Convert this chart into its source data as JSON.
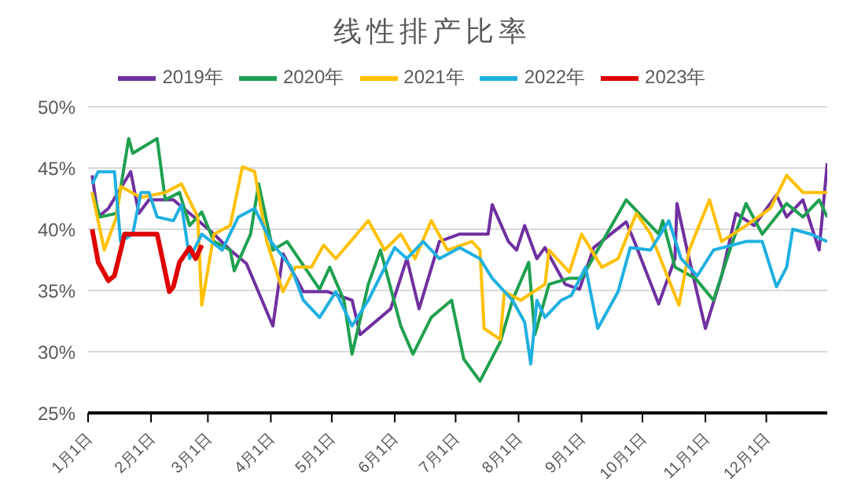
{
  "chart_data": {
    "type": "line",
    "title": "线性排产比率",
    "legend": "top",
    "grid": "y",
    "marker": "none",
    "line_style": "solid",
    "ylim": [
      25,
      50
    ],
    "yticks": [
      {
        "value": 25,
        "label": "25%"
      },
      {
        "value": 30,
        "label": "30%"
      },
      {
        "value": 35,
        "label": "35%"
      },
      {
        "value": 40,
        "label": "40%"
      },
      {
        "value": 45,
        "label": "45%"
      },
      {
        "value": 50,
        "label": "50%"
      }
    ],
    "xlim": [
      "--01-01",
      "--12-31"
    ],
    "xticks": [
      {
        "value": "--01-01",
        "label": "1月1日"
      },
      {
        "value": "--02-01",
        "label": "2月1日"
      },
      {
        "value": "--03-01",
        "label": "3月1日"
      },
      {
        "value": "--04-01",
        "label": "4月1日"
      },
      {
        "value": "--05-01",
        "label": "5月1日"
      },
      {
        "value": "--06-01",
        "label": "6月1日"
      },
      {
        "value": "--07-01",
        "label": "7月1日"
      },
      {
        "value": "--08-01",
        "label": "8月1日"
      },
      {
        "value": "--09-01",
        "label": "9月1日"
      },
      {
        "value": "--10-01",
        "label": "10月1日"
      },
      {
        "value": "--11-01",
        "label": "11月1日"
      },
      {
        "value": "--12-01",
        "label": "12月1日"
      }
    ],
    "series": [
      {
        "name": "2019年",
        "color": "#7030a0",
        "x": [
          "--01-03",
          "--01-06",
          "--01-11",
          "--01-22",
          "--01-26",
          "--01-31",
          "--02-12",
          "--02-20",
          "--03-04",
          "--03-12",
          "--03-20",
          "--04-02",
          "--04-07",
          "--04-17",
          "--04-29",
          "--05-11",
          "--05-15",
          "--05-30",
          "--06-07",
          "--06-13",
          "--06-23",
          "--07-03",
          "--07-17",
          "--07-19",
          "--07-27",
          "--07-31",
          "--08-04",
          "--08-10",
          "--08-14",
          "--08-24",
          "--08-31",
          "--09-07",
          "--09-23",
          "--09-27",
          "--10-09",
          "--10-17",
          "--10-18",
          "--10-23",
          "--11-01",
          "--11-09",
          "--11-16",
          "--11-25",
          "--12-06",
          "--12-11",
          "--12-19",
          "--12-27",
          "--12-31"
        ],
        "values": [
          44.4,
          41,
          41.7,
          44.7,
          41.3,
          42.4,
          42.4,
          41.3,
          39.6,
          38.3,
          37.2,
          32.1,
          38,
          34.9,
          34.9,
          34.2,
          31.4,
          33.5,
          37.6,
          33.5,
          39,
          39.6,
          39.6,
          42,
          39,
          38.3,
          40.3,
          37.6,
          38.5,
          35.5,
          35.1,
          38.5,
          40.6,
          39,
          33.9,
          37.6,
          42.1,
          38.3,
          31.9,
          36.2,
          41.3,
          40.3,
          42.8,
          41,
          42.4,
          38.3,
          45.4
        ]
      },
      {
        "name": "2020年",
        "color": "#1fa050",
        "x": [
          "--01-03",
          "--01-07",
          "--01-15",
          "--01-21",
          "--01-23",
          "--02-04",
          "--02-08",
          "--02-15",
          "--02-20",
          "--02-26",
          "--03-04",
          "--03-12",
          "--03-14",
          "--03-22",
          "--03-26",
          "--04-02",
          "--04-09",
          "--04-25",
          "--04-30",
          "--05-07",
          "--05-11",
          "--05-19",
          "--05-25",
          "--06-04",
          "--06-10",
          "--06-19",
          "--06-29",
          "--07-05",
          "--07-13",
          "--07-23",
          "--07-29",
          "--08-06",
          "--08-09",
          "--08-16",
          "--08-26",
          "--09-01",
          "--09-23",
          "--10-01",
          "--10-09",
          "--10-11",
          "--10-17",
          "--10-27",
          "--11-05",
          "--11-13",
          "--11-21",
          "--11-29",
          "--12-11",
          "--12-19",
          "--12-27",
          "--12-31"
        ],
        "values": [
          43,
          41,
          41.3,
          47.4,
          46.2,
          47.4,
          42.4,
          43,
          40.3,
          41.4,
          39,
          38.3,
          36.6,
          39.6,
          43.7,
          38.3,
          39,
          35.1,
          36.9,
          34.2,
          29.8,
          35.5,
          38.3,
          32.1,
          29.8,
          32.8,
          34.2,
          29.4,
          27.6,
          30.8,
          34.2,
          37.3,
          31.4,
          35.5,
          36,
          36,
          42.4,
          41,
          39.6,
          40.7,
          36.9,
          36,
          34.2,
          38.3,
          42.1,
          39.6,
          42.1,
          41,
          42.4,
          41
        ]
      },
      {
        "name": "2021年",
        "color": "#ffc000",
        "x": [
          "--01-03",
          "--01-09",
          "--01-15",
          "--01-17",
          "--01-27",
          "--02-08",
          "--02-16",
          "--02-24",
          "--02-26",
          "--03-04",
          "--03-12",
          "--03-18",
          "--03-24",
          "--03-30",
          "--04-07",
          "--04-13",
          "--04-21",
          "--04-27",
          "--05-03",
          "--05-19",
          "--05-27",
          "--06-04",
          "--06-11",
          "--06-19",
          "--06-27",
          "--07-09",
          "--07-13",
          "--07-15",
          "--07-23",
          "--07-25",
          "--08-02",
          "--08-14",
          "--08-16",
          "--08-26",
          "--09-01",
          "--09-11",
          "--09-19",
          "--09-28",
          "--10-05",
          "--10-19",
          "--10-24",
          "--11-03",
          "--11-09",
          "--11-21",
          "--12-03",
          "--12-11",
          "--12-19",
          "--12-31"
        ],
        "values": [
          43,
          38.3,
          41,
          43.5,
          42.6,
          43,
          43.7,
          41,
          33.8,
          39.6,
          40.3,
          45.1,
          44.7,
          39,
          34.9,
          36.9,
          36.9,
          38.7,
          37.6,
          40.7,
          38.3,
          39.6,
          37.6,
          40.7,
          38.3,
          39,
          38.3,
          31.9,
          31,
          34.9,
          34.2,
          35.5,
          38.3,
          36.5,
          39.6,
          36.9,
          37.6,
          41.3,
          39.6,
          33.8,
          38.3,
          42.4,
          39,
          40.3,
          41.7,
          44.4,
          43,
          43
        ]
      },
      {
        "name": "2022年",
        "color": "#1fb0e0",
        "x": [
          "--01-03",
          "--01-06",
          "--01-14",
          "--01-17",
          "--01-23",
          "--01-27",
          "--01-31",
          "--02-04",
          "--02-12",
          "--02-16",
          "--02-20",
          "--02-26",
          "--03-08",
          "--03-16",
          "--03-24",
          "--04-01",
          "--04-11",
          "--04-17",
          "--04-25",
          "--05-03",
          "--05-11",
          "--05-19",
          "--06-01",
          "--06-07",
          "--06-15",
          "--06-23",
          "--07-03",
          "--07-13",
          "--07-19",
          "--07-29",
          "--08-04",
          "--08-07",
          "--08-10",
          "--08-14",
          "--08-22",
          "--08-27",
          "--09-03",
          "--09-09",
          "--09-19",
          "--09-25",
          "--10-05",
          "--10-14",
          "--10-20",
          "--10-28",
          "--11-05",
          "--11-21",
          "--11-29",
          "--12-06",
          "--12-11",
          "--12-14",
          "--12-23",
          "--12-31"
        ],
        "values": [
          43.7,
          44.7,
          44.7,
          39,
          39.6,
          43,
          43,
          41,
          40.7,
          42,
          37.6,
          39.6,
          38.3,
          41,
          41.7,
          39,
          36.9,
          34.2,
          32.8,
          34.9,
          32.1,
          34.2,
          38.5,
          37.6,
          39,
          37.6,
          38.5,
          37.6,
          36,
          34.2,
          32.4,
          29,
          34.2,
          32.8,
          34.2,
          34.6,
          36.9,
          31.9,
          34.9,
          38.5,
          38.3,
          40.7,
          37.6,
          36.2,
          38.3,
          39,
          39,
          35.3,
          36.9,
          40,
          39.6,
          39
        ]
      },
      {
        "name": "2023年",
        "color": "#e00000",
        "x": [
          "--01-03",
          "--01-06",
          "--01-11",
          "--01-14",
          "--01-19",
          "--02-04",
          "--02-07",
          "--02-10",
          "--02-12",
          "--02-15",
          "--02-20",
          "--02-23",
          "--02-26"
        ],
        "values": [
          40,
          37.3,
          35.8,
          36.2,
          39.6,
          39.6,
          37.3,
          34.9,
          35.3,
          37.3,
          38.5,
          37.6,
          38.7
        ]
      }
    ]
  }
}
